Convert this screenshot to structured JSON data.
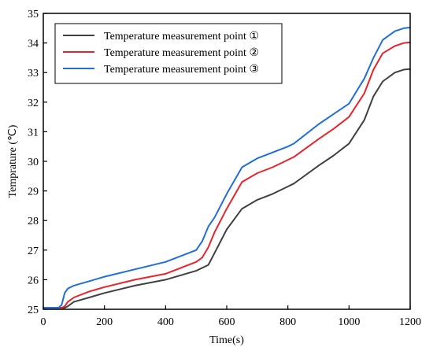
{
  "chart_data": {
    "type": "line",
    "title": "",
    "xlabel": "Time(s)",
    "ylabel": "Temprature (℃)",
    "xlim": [
      0,
      1200
    ],
    "ylim": [
      25,
      35
    ],
    "xticks": [
      0,
      200,
      400,
      600,
      800,
      1000,
      1200
    ],
    "yticks": [
      25,
      26,
      27,
      28,
      29,
      30,
      31,
      32,
      33,
      34,
      35
    ],
    "grid": false,
    "legend_position": "top-left",
    "series": [
      {
        "name": "Temperature measurement point ①",
        "color": "#404040",
        "x": [
          0,
          60,
          70,
          80,
          100,
          150,
          200,
          300,
          400,
          500,
          540,
          560,
          600,
          650,
          700,
          750,
          800,
          820,
          900,
          950,
          1000,
          1050,
          1080,
          1110,
          1150,
          1180,
          1200
        ],
        "y": [
          25.05,
          25.05,
          25.05,
          25.1,
          25.25,
          25.4,
          25.55,
          25.8,
          26.0,
          26.3,
          26.5,
          26.9,
          27.7,
          28.4,
          28.7,
          28.9,
          29.15,
          29.25,
          29.85,
          30.2,
          30.6,
          31.4,
          32.2,
          32.7,
          33.0,
          33.1,
          33.12
        ]
      },
      {
        "name": "Temperature measurement point ②",
        "color": "#e8242a",
        "x": [
          0,
          60,
          70,
          80,
          100,
          150,
          200,
          300,
          400,
          500,
          520,
          540,
          560,
          600,
          650,
          700,
          750,
          800,
          820,
          900,
          950,
          1000,
          1050,
          1080,
          1110,
          1150,
          1180,
          1200
        ],
        "y": [
          25.05,
          25.05,
          25.1,
          25.25,
          25.4,
          25.6,
          25.75,
          26.0,
          26.2,
          26.6,
          26.75,
          27.1,
          27.6,
          28.4,
          29.3,
          29.6,
          29.8,
          30.05,
          30.15,
          30.75,
          31.1,
          31.5,
          32.3,
          33.1,
          33.65,
          33.9,
          34.0,
          34.02
        ]
      },
      {
        "name": "Temperature measurement point ③",
        "color": "#1f6fd6",
        "x": [
          0,
          50,
          60,
          70,
          80,
          100,
          150,
          200,
          300,
          400,
          500,
          520,
          540,
          560,
          600,
          650,
          700,
          750,
          800,
          820,
          900,
          950,
          1000,
          1050,
          1080,
          1110,
          1150,
          1180,
          1200
        ],
        "y": [
          25.05,
          25.05,
          25.15,
          25.55,
          25.7,
          25.8,
          25.95,
          26.1,
          26.35,
          26.6,
          27.0,
          27.3,
          27.8,
          28.1,
          28.9,
          29.8,
          30.1,
          30.3,
          30.5,
          30.6,
          31.25,
          31.6,
          31.95,
          32.8,
          33.5,
          34.1,
          34.4,
          34.5,
          34.52
        ]
      }
    ]
  }
}
